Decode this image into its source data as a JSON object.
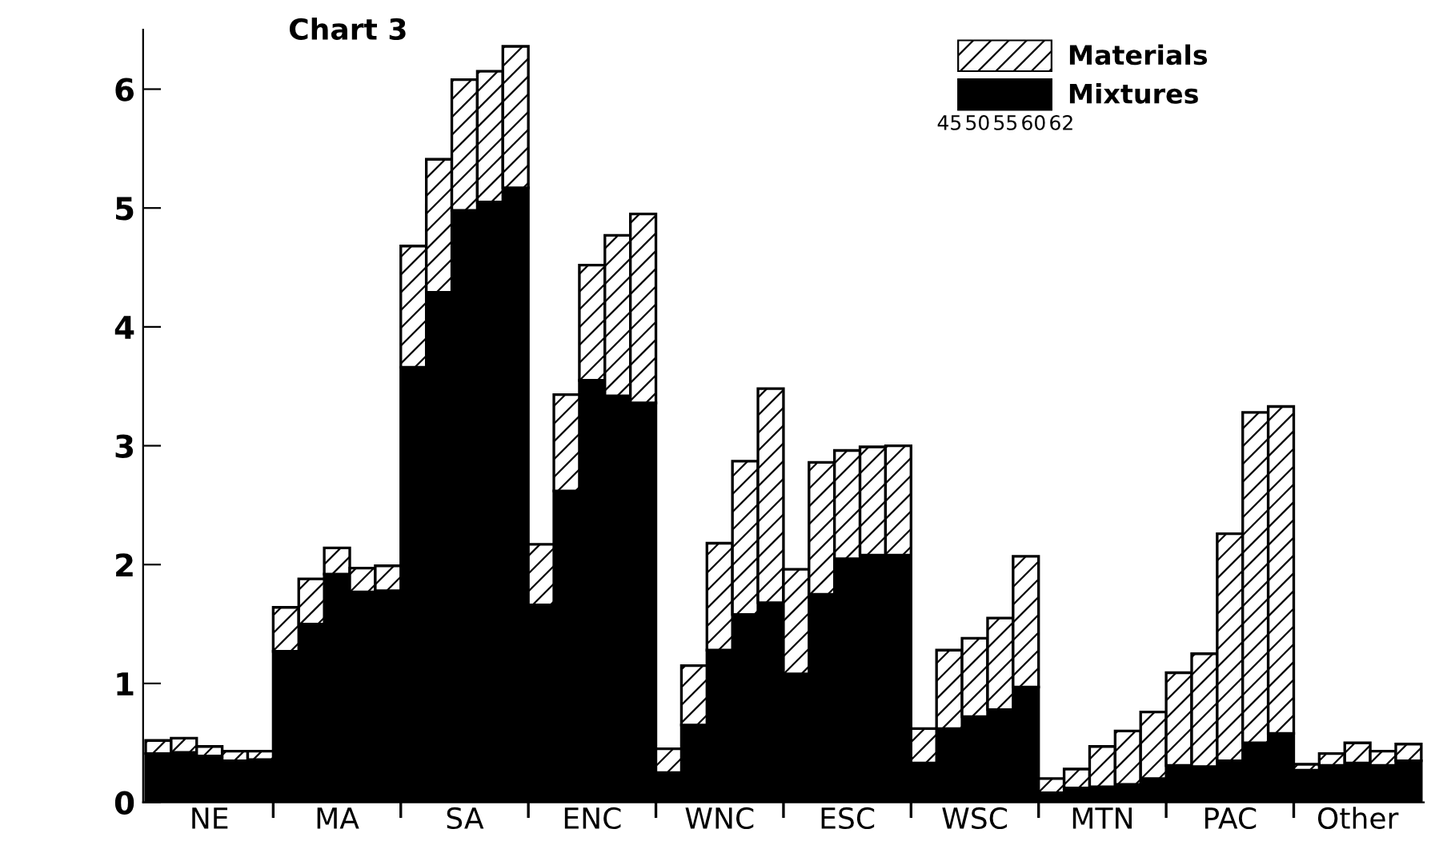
{
  "chart_data": {
    "type": "bar",
    "title": "Chart 3",
    "stacked": true,
    "categories": [
      null,
      null,
      "NE",
      null,
      null,
      null,
      null,
      "MA",
      null,
      null,
      null,
      null,
      "SA",
      null,
      null,
      null,
      null,
      "ENC",
      null,
      null,
      null,
      null,
      "WNC",
      null,
      null,
      null,
      null,
      "ESC",
      null,
      null,
      null,
      null,
      "WSC",
      null,
      null,
      null,
      null,
      "MTN",
      null,
      null,
      null,
      null,
      "PAC",
      null,
      null,
      null,
      null,
      "Other",
      null,
      null
    ],
    "series": [
      {
        "name": "Mixtures",
        "color": "#000000",
        "values": [
          0.41,
          0.42,
          0.39,
          0.35,
          0.36,
          1.27,
          1.5,
          1.92,
          1.77,
          1.78,
          3.66,
          4.29,
          4.98,
          5.05,
          5.17,
          1.66,
          2.62,
          3.55,
          3.42,
          3.36,
          0.25,
          0.65,
          1.28,
          1.58,
          1.68,
          1.08,
          1.75,
          2.05,
          2.08,
          2.08,
          0.33,
          0.62,
          0.72,
          0.78,
          0.97,
          0.08,
          0.12,
          0.13,
          0.15,
          0.2,
          0.31,
          0.3,
          0.35,
          0.5,
          0.58,
          0.27,
          0.31,
          0.33,
          0.31,
          0.35
        ]
      },
      {
        "name": "Materials",
        "color": "#ffffff",
        "values": [
          0.11,
          0.12,
          0.08,
          0.08,
          0.07,
          0.37,
          0.38,
          0.22,
          0.2,
          0.21,
          1.02,
          1.12,
          1.1,
          1.1,
          1.19,
          0.51,
          0.81,
          0.97,
          1.35,
          1.59,
          0.2,
          0.5,
          0.9,
          1.29,
          1.8,
          0.88,
          1.11,
          0.91,
          0.91,
          0.92,
          0.29,
          0.66,
          0.66,
          0.77,
          1.1,
          0.12,
          0.16,
          0.34,
          0.45,
          0.56,
          0.78,
          0.95,
          1.91,
          2.78,
          2.75,
          0.05,
          0.1,
          0.17,
          0.12,
          0.14
        ]
      }
    ],
    "ylim": [
      0,
      6.5
    ],
    "yticks": [
      0,
      1,
      2,
      3,
      4,
      5,
      6
    ],
    "grid": false,
    "legend": "top right",
    "annotations": [
      "45",
      "50",
      "55",
      "60",
      "62"
    ]
  }
}
